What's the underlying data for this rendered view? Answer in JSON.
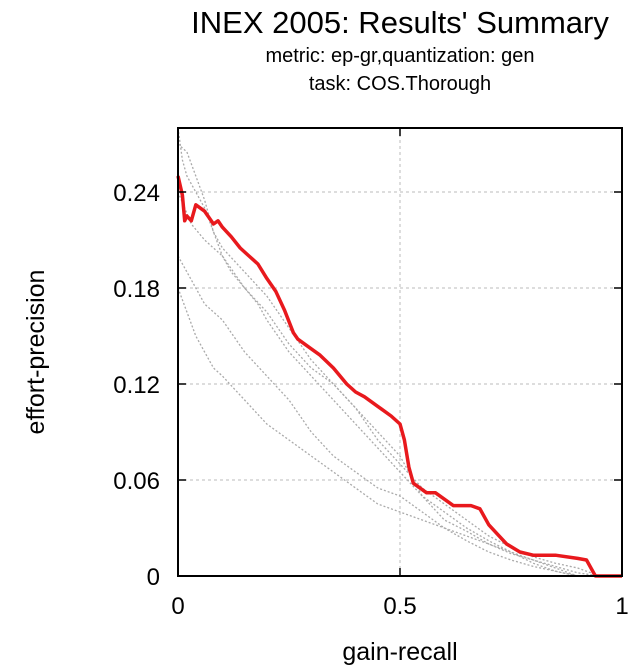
{
  "chart_data": {
    "type": "line",
    "title": "INEX 2005: Results' Summary",
    "subtitle_lines": [
      "metric: ep-gr,quantization: gen",
      "task: COS.Thorough"
    ],
    "xlabel": "gain-recall",
    "ylabel": "effort-precision",
    "xlim": [
      0,
      1
    ],
    "ylim": [
      0,
      0.28
    ],
    "xticks": [
      {
        "v": 0,
        "label": "0"
      },
      {
        "v": 0.5,
        "label": "0.5"
      },
      {
        "v": 1,
        "label": "1"
      }
    ],
    "yticks": [
      {
        "v": 0,
        "label": "0"
      },
      {
        "v": 0.06,
        "label": "0.06"
      },
      {
        "v": 0.12,
        "label": "0.12"
      },
      {
        "v": 0.18,
        "label": "0.18"
      },
      {
        "v": 0.24,
        "label": "0.24"
      }
    ],
    "grid": true,
    "series": [
      {
        "color": "#aaaaaa",
        "style": "dotted",
        "points": [
          [
            0.0,
            0.28
          ],
          [
            0.01,
            0.26
          ],
          [
            0.02,
            0.25
          ],
          [
            0.04,
            0.24
          ],
          [
            0.06,
            0.23
          ],
          [
            0.08,
            0.215
          ],
          [
            0.1,
            0.2
          ],
          [
            0.12,
            0.19
          ],
          [
            0.15,
            0.18
          ],
          [
            0.18,
            0.17
          ],
          [
            0.2,
            0.16
          ],
          [
            0.25,
            0.14
          ],
          [
            0.3,
            0.125
          ],
          [
            0.35,
            0.11
          ],
          [
            0.4,
            0.095
          ],
          [
            0.45,
            0.08
          ],
          [
            0.5,
            0.065
          ],
          [
            0.55,
            0.05
          ],
          [
            0.6,
            0.04
          ],
          [
            0.65,
            0.03
          ],
          [
            0.7,
            0.022
          ],
          [
            0.75,
            0.015
          ],
          [
            0.8,
            0.008
          ],
          [
            0.85,
            0.003
          ],
          [
            0.9,
            0.0
          ]
        ]
      },
      {
        "color": "#aaaaaa",
        "style": "dotted",
        "points": [
          [
            0.0,
            0.27
          ],
          [
            0.02,
            0.265
          ],
          [
            0.04,
            0.25
          ],
          [
            0.06,
            0.235
          ],
          [
            0.08,
            0.215
          ],
          [
            0.1,
            0.205
          ],
          [
            0.15,
            0.19
          ],
          [
            0.2,
            0.175
          ],
          [
            0.25,
            0.155
          ],
          [
            0.3,
            0.135
          ],
          [
            0.35,
            0.12
          ],
          [
            0.4,
            0.105
          ],
          [
            0.45,
            0.09
          ],
          [
            0.5,
            0.075
          ],
          [
            0.55,
            0.05
          ],
          [
            0.6,
            0.035
          ],
          [
            0.65,
            0.028
          ],
          [
            0.7,
            0.02
          ],
          [
            0.75,
            0.014
          ],
          [
            0.8,
            0.01
          ],
          [
            0.85,
            0.006
          ],
          [
            0.9,
            0.002
          ],
          [
            0.95,
            0.0
          ]
        ]
      },
      {
        "color": "#aaaaaa",
        "style": "dotted",
        "points": [
          [
            0.0,
            0.2
          ],
          [
            0.02,
            0.19
          ],
          [
            0.04,
            0.18
          ],
          [
            0.06,
            0.17
          ],
          [
            0.08,
            0.165
          ],
          [
            0.1,
            0.16
          ],
          [
            0.15,
            0.14
          ],
          [
            0.2,
            0.125
          ],
          [
            0.25,
            0.11
          ],
          [
            0.3,
            0.09
          ],
          [
            0.35,
            0.075
          ],
          [
            0.4,
            0.065
          ],
          [
            0.45,
            0.055
          ],
          [
            0.5,
            0.05
          ],
          [
            0.55,
            0.04
          ],
          [
            0.6,
            0.03
          ],
          [
            0.65,
            0.025
          ],
          [
            0.7,
            0.02
          ],
          [
            0.75,
            0.015
          ],
          [
            0.8,
            0.01
          ],
          [
            0.85,
            0.005
          ],
          [
            0.9,
            0.0
          ]
        ]
      },
      {
        "color": "#aaaaaa",
        "style": "dotted",
        "points": [
          [
            0.0,
            0.18
          ],
          [
            0.02,
            0.165
          ],
          [
            0.04,
            0.15
          ],
          [
            0.06,
            0.14
          ],
          [
            0.08,
            0.13
          ],
          [
            0.1,
            0.125
          ],
          [
            0.15,
            0.11
          ],
          [
            0.2,
            0.095
          ],
          [
            0.25,
            0.085
          ],
          [
            0.3,
            0.075
          ],
          [
            0.35,
            0.065
          ],
          [
            0.4,
            0.055
          ],
          [
            0.45,
            0.045
          ],
          [
            0.5,
            0.04
          ],
          [
            0.55,
            0.035
          ],
          [
            0.6,
            0.03
          ],
          [
            0.65,
            0.022
          ],
          [
            0.7,
            0.015
          ],
          [
            0.75,
            0.01
          ],
          [
            0.8,
            0.006
          ],
          [
            0.85,
            0.003
          ],
          [
            0.9,
            0.0
          ]
        ]
      },
      {
        "color": "#aaaaaa",
        "style": "dotted",
        "points": [
          [
            0.0,
            0.24
          ],
          [
            0.03,
            0.22
          ],
          [
            0.06,
            0.21
          ],
          [
            0.1,
            0.2
          ],
          [
            0.15,
            0.18
          ],
          [
            0.2,
            0.165
          ],
          [
            0.25,
            0.145
          ],
          [
            0.3,
            0.13
          ],
          [
            0.35,
            0.12
          ],
          [
            0.4,
            0.105
          ],
          [
            0.45,
            0.085
          ],
          [
            0.5,
            0.07
          ],
          [
            0.55,
            0.055
          ],
          [
            0.6,
            0.045
          ],
          [
            0.65,
            0.035
          ],
          [
            0.7,
            0.025
          ],
          [
            0.75,
            0.018
          ],
          [
            0.8,
            0.012
          ],
          [
            0.85,
            0.008
          ],
          [
            0.9,
            0.005
          ],
          [
            0.95,
            0.0
          ]
        ]
      },
      {
        "color": "#e8191d",
        "style": "solid",
        "points": [
          [
            0.0,
            0.25
          ],
          [
            0.01,
            0.238
          ],
          [
            0.015,
            0.222
          ],
          [
            0.02,
            0.225
          ],
          [
            0.03,
            0.222
          ],
          [
            0.04,
            0.232
          ],
          [
            0.06,
            0.228
          ],
          [
            0.08,
            0.22
          ],
          [
            0.09,
            0.222
          ],
          [
            0.1,
            0.218
          ],
          [
            0.12,
            0.212
          ],
          [
            0.14,
            0.205
          ],
          [
            0.16,
            0.2
          ],
          [
            0.18,
            0.195
          ],
          [
            0.2,
            0.186
          ],
          [
            0.22,
            0.178
          ],
          [
            0.24,
            0.166
          ],
          [
            0.26,
            0.152
          ],
          [
            0.27,
            0.148
          ],
          [
            0.3,
            0.142
          ],
          [
            0.32,
            0.138
          ],
          [
            0.35,
            0.13
          ],
          [
            0.38,
            0.12
          ],
          [
            0.4,
            0.115
          ],
          [
            0.42,
            0.112
          ],
          [
            0.45,
            0.106
          ],
          [
            0.48,
            0.1
          ],
          [
            0.5,
            0.095
          ],
          [
            0.51,
            0.085
          ],
          [
            0.52,
            0.068
          ],
          [
            0.53,
            0.058
          ],
          [
            0.56,
            0.052
          ],
          [
            0.58,
            0.052
          ],
          [
            0.6,
            0.048
          ],
          [
            0.62,
            0.044
          ],
          [
            0.66,
            0.044
          ],
          [
            0.68,
            0.042
          ],
          [
            0.7,
            0.032
          ],
          [
            0.72,
            0.026
          ],
          [
            0.74,
            0.02
          ],
          [
            0.77,
            0.015
          ],
          [
            0.8,
            0.013
          ],
          [
            0.85,
            0.013
          ],
          [
            0.9,
            0.011
          ],
          [
            0.92,
            0.01
          ],
          [
            0.94,
            0.0
          ],
          [
            1.0,
            0.0
          ]
        ]
      }
    ]
  }
}
